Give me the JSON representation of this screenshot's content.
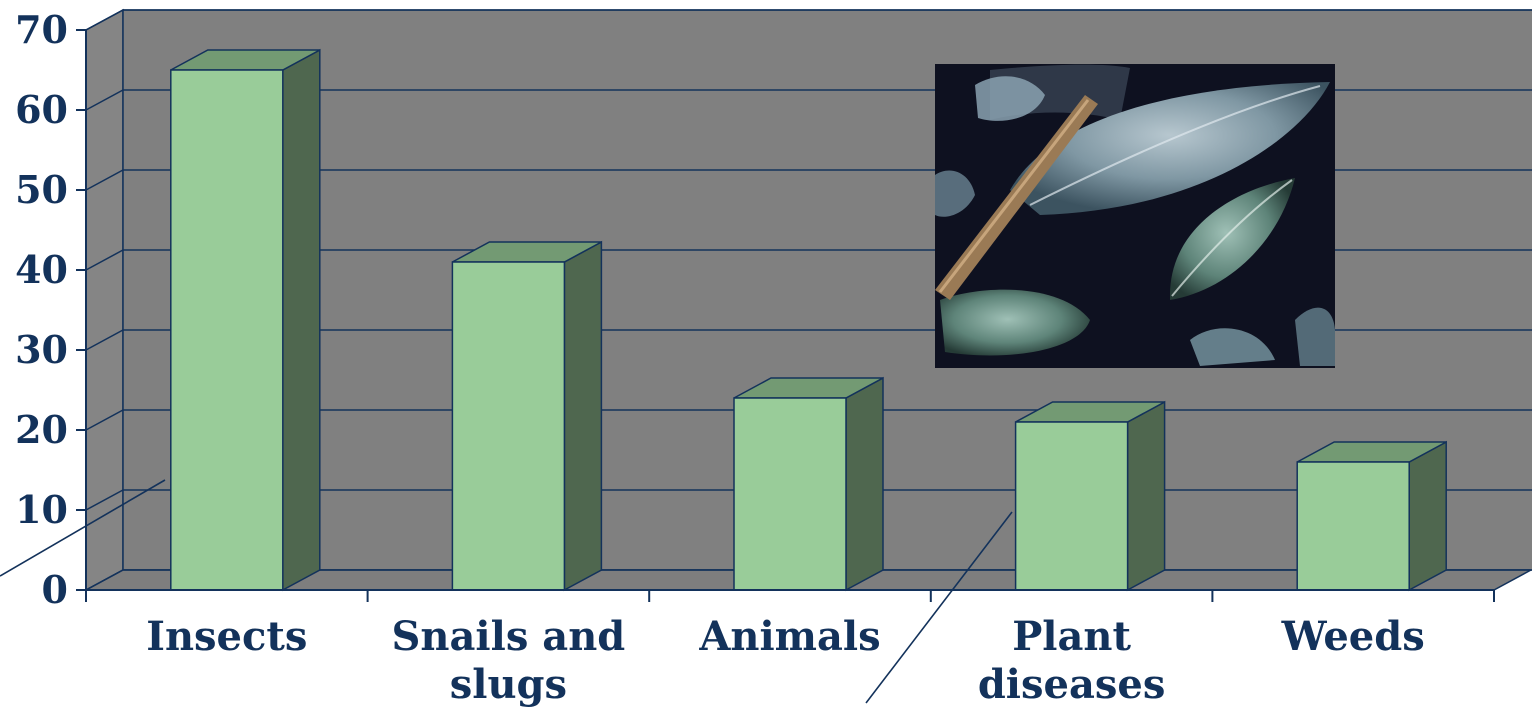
{
  "chart_data": {
    "type": "bar",
    "categories": [
      "Insects",
      "Snails and slugs",
      "Animals",
      "Plant diseases",
      "Weeds"
    ],
    "category_lines": [
      [
        "Insects"
      ],
      [
        "Snails and",
        "slugs"
      ],
      [
        "Animals"
      ],
      [
        "Plant",
        "diseases"
      ],
      [
        "Weeds"
      ]
    ],
    "values": [
      65,
      41,
      24,
      21,
      16
    ],
    "ylim": [
      0,
      70
    ],
    "yticks": [
      "0",
      "10",
      "20",
      "30",
      "40",
      "50",
      "60",
      "70"
    ],
    "title": "",
    "xlabel": "",
    "ylabel": "",
    "grid": true,
    "legend": "none",
    "style": "3d-column",
    "colors": {
      "bar_front": "#99cc99",
      "bar_side": "#4f674f",
      "bar_top": "#739a73",
      "plot_back": "#808080",
      "plot_left": "#858585",
      "floor": "#7e7e7e",
      "edge": "#13325b",
      "text": "#13325b"
    },
    "inset_photo": "plant-leaves-with-powdery-mildew"
  }
}
